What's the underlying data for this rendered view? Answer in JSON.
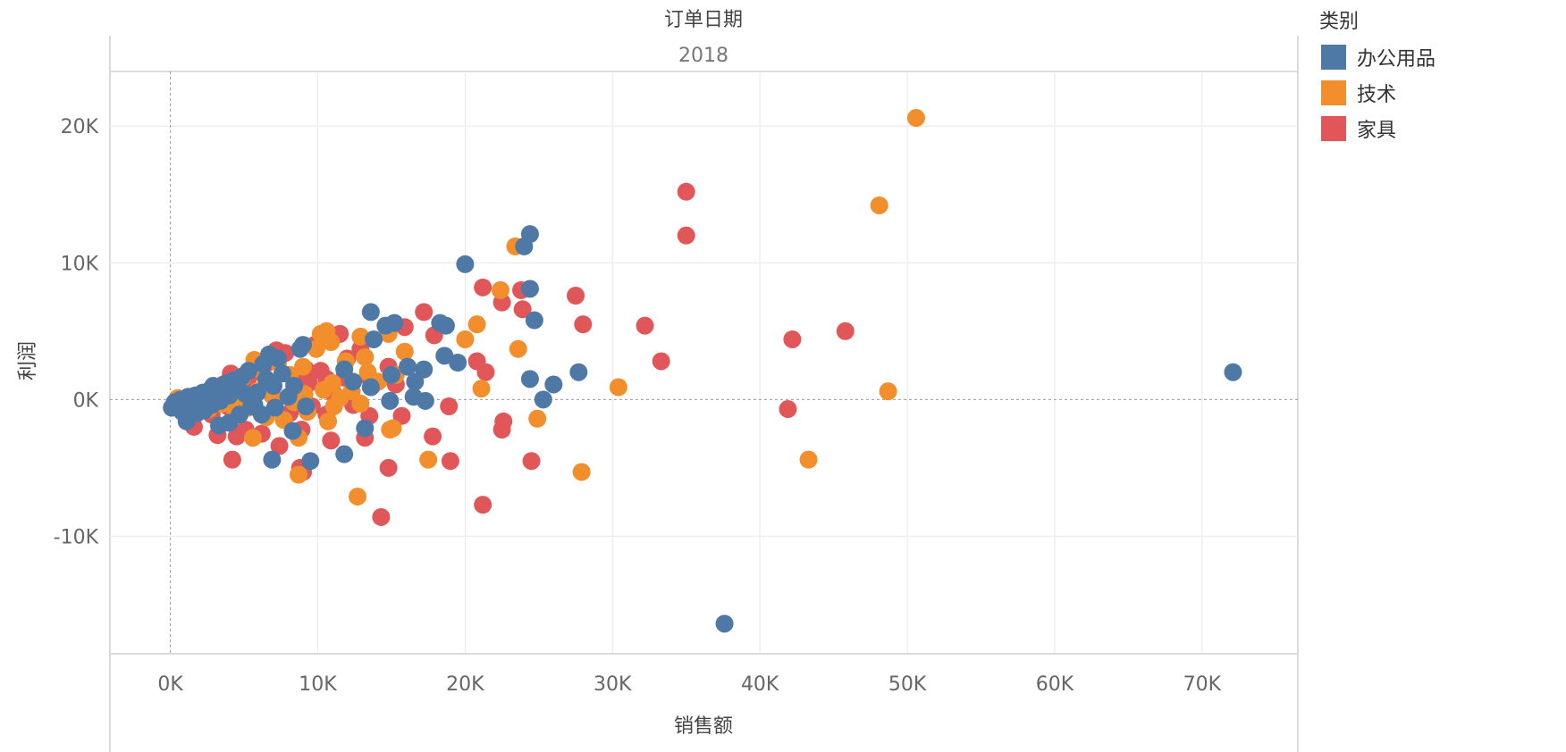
{
  "header": {
    "column_title": "订单日期",
    "panel_year": "2018"
  },
  "legend": {
    "title": "类别",
    "items": [
      {
        "label": "办公用品",
        "color": "#4e79a7"
      },
      {
        "label": "技术",
        "color": "#f28e2b"
      },
      {
        "label": "家具",
        "color": "#e15759"
      }
    ]
  },
  "chart_data": {
    "type": "scatter",
    "xlabel": "销售额",
    "ylabel": "利润",
    "xlim": [
      -4100,
      76500
    ],
    "ylim": [
      -18600,
      24000
    ],
    "xticks": [
      0,
      10000,
      20000,
      30000,
      40000,
      50000,
      60000,
      70000
    ],
    "xtick_labels": [
      "0K",
      "10K",
      "20K",
      "30K",
      "40K",
      "50K",
      "60K",
      "70K"
    ],
    "yticks": [
      -10000,
      0,
      10000,
      20000
    ],
    "ytick_labels": [
      "-10K",
      "0K",
      "10K",
      "20K"
    ],
    "grid": true,
    "legend_position": "top-right",
    "series": [
      {
        "name": "家具",
        "color": "#e15759",
        "points": [
          [
            35000,
            15200
          ],
          [
            35000,
            12000
          ],
          [
            21200,
            8200
          ],
          [
            27500,
            7600
          ],
          [
            23800,
            8000
          ],
          [
            22500,
            7100
          ],
          [
            23900,
            6600
          ],
          [
            28000,
            5500
          ],
          [
            32200,
            5400
          ],
          [
            45800,
            5000
          ],
          [
            42200,
            4400
          ],
          [
            33300,
            2800
          ],
          [
            17200,
            6400
          ],
          [
            15900,
            5300
          ],
          [
            17900,
            4700
          ],
          [
            20800,
            2800
          ],
          [
            21400,
            2000
          ],
          [
            41900,
            -700
          ],
          [
            22600,
            -1600
          ],
          [
            22500,
            -2200
          ],
          [
            24500,
            -4500
          ],
          [
            19000,
            -4500
          ],
          [
            21200,
            -7700
          ],
          [
            14300,
            -8600
          ],
          [
            14800,
            -5000
          ],
          [
            17800,
            -2700
          ],
          [
            18900,
            -500
          ],
          [
            15700,
            -1200
          ],
          [
            13500,
            -1200
          ],
          [
            13200,
            -2800
          ],
          [
            10900,
            -3000
          ],
          [
            9000,
            -5300
          ],
          [
            8800,
            -5000
          ],
          [
            8900,
            -2200
          ],
          [
            7400,
            -3400
          ],
          [
            4200,
            -4400
          ],
          [
            3200,
            -2600
          ],
          [
            4500,
            -2700
          ],
          [
            5100,
            -2200
          ],
          [
            6200,
            -2500
          ],
          [
            1600,
            -2000
          ],
          [
            10300,
            4800
          ],
          [
            11500,
            4800
          ],
          [
            12000,
            3000
          ],
          [
            9800,
            4000
          ],
          [
            9200,
            2200
          ],
          [
            10600,
            1500
          ],
          [
            13400,
            1700
          ],
          [
            15100,
            1500
          ],
          [
            8400,
            1300
          ],
          [
            7200,
            3600
          ],
          [
            7800,
            3400
          ],
          [
            6600,
            2700
          ],
          [
            5900,
            2100
          ],
          [
            5300,
            1600
          ],
          [
            4800,
            1200
          ],
          [
            4100,
            1900
          ],
          [
            3600,
            1100
          ],
          [
            3000,
            600
          ],
          [
            2500,
            300
          ],
          [
            2000,
            -200
          ],
          [
            1100,
            -500
          ],
          [
            12400,
            -400
          ],
          [
            11100,
            400
          ],
          [
            10200,
            2100
          ],
          [
            9600,
            -500
          ],
          [
            8100,
            -1000
          ],
          [
            6900,
            800
          ],
          [
            5600,
            -300
          ],
          [
            4700,
            -900
          ],
          [
            3900,
            -500
          ],
          [
            2800,
            -1100
          ],
          [
            14800,
            2400
          ],
          [
            13700,
            1000
          ],
          [
            12900,
            3700
          ],
          [
            11800,
            1600
          ],
          [
            15300,
            1100
          ],
          [
            10600,
            -1100
          ],
          [
            9400,
            1200
          ]
        ]
      },
      {
        "name": "技术",
        "color": "#f28e2b",
        "points": [
          [
            50600,
            20600
          ],
          [
            48100,
            14200
          ],
          [
            23400,
            11200
          ],
          [
            22400,
            8000
          ],
          [
            20800,
            5500
          ],
          [
            20000,
            4400
          ],
          [
            23600,
            3700
          ],
          [
            21100,
            800
          ],
          [
            30400,
            900
          ],
          [
            48700,
            600
          ],
          [
            43300,
            -4400
          ],
          [
            27900,
            -5300
          ],
          [
            17500,
            -4400
          ],
          [
            12700,
            -7100
          ],
          [
            8700,
            -5500
          ],
          [
            5600,
            -2800
          ],
          [
            24900,
            -1400
          ],
          [
            15100,
            -2100
          ],
          [
            14900,
            -2200
          ],
          [
            8700,
            -2800
          ],
          [
            10600,
            5000
          ],
          [
            10200,
            4800
          ],
          [
            10900,
            4200
          ],
          [
            12900,
            4600
          ],
          [
            14800,
            4800
          ],
          [
            15900,
            3500
          ],
          [
            13200,
            3100
          ],
          [
            11900,
            2800
          ],
          [
            9900,
            3700
          ],
          [
            9000,
            2400
          ],
          [
            8100,
            1800
          ],
          [
            7300,
            2700
          ],
          [
            6100,
            2200
          ],
          [
            5700,
            2900
          ],
          [
            4900,
            1600
          ],
          [
            4200,
            1300
          ],
          [
            3600,
            800
          ],
          [
            2900,
            500
          ],
          [
            2300,
            200
          ],
          [
            1700,
            -300
          ],
          [
            1000,
            -100
          ],
          [
            500,
            100
          ],
          [
            11000,
            1200
          ],
          [
            12300,
            600
          ],
          [
            13400,
            2000
          ],
          [
            14100,
            1300
          ],
          [
            12900,
            -300
          ],
          [
            11100,
            -500
          ],
          [
            10700,
            -1600
          ],
          [
            9300,
            -900
          ],
          [
            7700,
            -1500
          ],
          [
            6500,
            -1300
          ],
          [
            5300,
            -600
          ],
          [
            4400,
            -800
          ],
          [
            3500,
            -300
          ],
          [
            2600,
            -700
          ],
          [
            15300,
            1800
          ],
          [
            11500,
            100
          ],
          [
            10400,
            700
          ],
          [
            9100,
            400
          ],
          [
            8400,
            -200
          ],
          [
            6900,
            300
          ],
          [
            5900,
            600
          ],
          [
            4600,
            200
          ]
        ]
      },
      {
        "name": "办公用品",
        "color": "#4e79a7",
        "points": [
          [
            72100,
            2000
          ],
          [
            37600,
            -16400
          ],
          [
            24400,
            12100
          ],
          [
            24000,
            11200
          ],
          [
            20000,
            9900
          ],
          [
            24400,
            8100
          ],
          [
            24700,
            5800
          ],
          [
            18700,
            5400
          ],
          [
            18300,
            5600
          ],
          [
            15200,
            5600
          ],
          [
            14600,
            5400
          ],
          [
            13600,
            6400
          ],
          [
            13800,
            4400
          ],
          [
            18600,
            3200
          ],
          [
            19500,
            2700
          ],
          [
            17200,
            2200
          ],
          [
            16100,
            2400
          ],
          [
            16600,
            1300
          ],
          [
            16500,
            200
          ],
          [
            17300,
            -100
          ],
          [
            15000,
            1800
          ],
          [
            14900,
            -100
          ],
          [
            12400,
            1300
          ],
          [
            11800,
            2200
          ],
          [
            13600,
            900
          ],
          [
            24400,
            1500
          ],
          [
            26000,
            1100
          ],
          [
            27700,
            2000
          ],
          [
            25300,
            0
          ],
          [
            11800,
            -4000
          ],
          [
            13200,
            -2100
          ],
          [
            9500,
            -4500
          ],
          [
            6900,
            -4400
          ],
          [
            3300,
            -1900
          ],
          [
            4000,
            -1700
          ],
          [
            1100,
            -1600
          ],
          [
            7100,
            -600
          ],
          [
            8300,
            -2300
          ],
          [
            9200,
            -500
          ],
          [
            8800,
            3700
          ],
          [
            9000,
            4000
          ],
          [
            7300,
            3000
          ],
          [
            6700,
            3300
          ],
          [
            6300,
            2600
          ],
          [
            5300,
            2100
          ],
          [
            4900,
            1700
          ],
          [
            4300,
            1400
          ],
          [
            3800,
            1200
          ],
          [
            3200,
            900
          ],
          [
            2700,
            700
          ],
          [
            2200,
            500
          ],
          [
            1700,
            300
          ],
          [
            1200,
            200
          ],
          [
            700,
            0
          ],
          [
            300,
            -200
          ],
          [
            100,
            -600
          ],
          [
            6200,
            -1100
          ],
          [
            5700,
            -400
          ],
          [
            5100,
            400
          ],
          [
            4600,
            800
          ],
          [
            4000,
            300
          ],
          [
            3400,
            -100
          ],
          [
            2800,
            -400
          ],
          [
            2300,
            -800
          ],
          [
            1800,
            -1000
          ],
          [
            800,
            -900
          ],
          [
            8400,
            1000
          ],
          [
            8000,
            200
          ],
          [
            7600,
            1900
          ],
          [
            7000,
            1000
          ],
          [
            6500,
            1500
          ],
          [
            5900,
            500
          ],
          [
            5500,
            -500
          ],
          [
            4700,
            -1100
          ],
          [
            3700,
            400
          ],
          [
            2900,
            1000
          ],
          [
            2000,
            100
          ],
          [
            1400,
            -300
          ],
          [
            500,
            -500
          ]
        ]
      }
    ]
  }
}
